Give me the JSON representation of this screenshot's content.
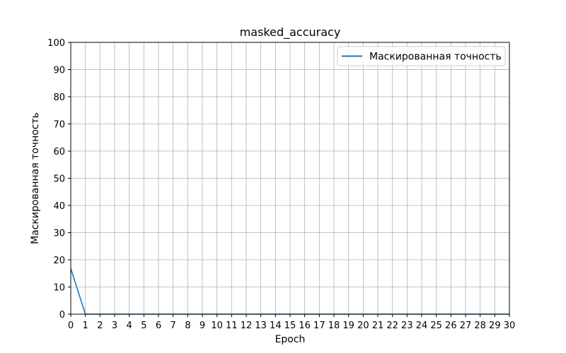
{
  "chart_data": {
    "type": "line",
    "title": "masked_accuracy",
    "xlabel": "Epoch",
    "ylabel": "Маскированная точность",
    "xlim": [
      0,
      30
    ],
    "ylim": [
      0,
      100
    ],
    "x_ticks": [
      0,
      1,
      2,
      3,
      4,
      5,
      6,
      7,
      8,
      9,
      10,
      11,
      12,
      13,
      14,
      15,
      16,
      17,
      18,
      19,
      20,
      21,
      22,
      23,
      24,
      25,
      26,
      27,
      28,
      29,
      30
    ],
    "y_ticks": [
      0,
      10,
      20,
      30,
      40,
      50,
      60,
      70,
      80,
      90,
      100
    ],
    "grid": true,
    "legend_position": "top-right",
    "series": [
      {
        "name": "Маскированная точность",
        "color": "#1f77b4",
        "x": [
          0,
          1,
          2,
          3,
          4,
          5,
          6,
          7,
          8,
          9,
          10,
          11,
          12,
          13,
          14,
          15,
          16,
          17,
          18,
          19,
          20,
          21,
          22,
          23,
          24,
          25,
          26,
          27,
          28,
          29,
          30
        ],
        "y": [
          16.8,
          0,
          0,
          0,
          0,
          0,
          0,
          0,
          0,
          0,
          0,
          0,
          0,
          0,
          0,
          0,
          0,
          0,
          0,
          0,
          0,
          0,
          0,
          0,
          0,
          0,
          0,
          0,
          0,
          0,
          0
        ]
      }
    ]
  }
}
